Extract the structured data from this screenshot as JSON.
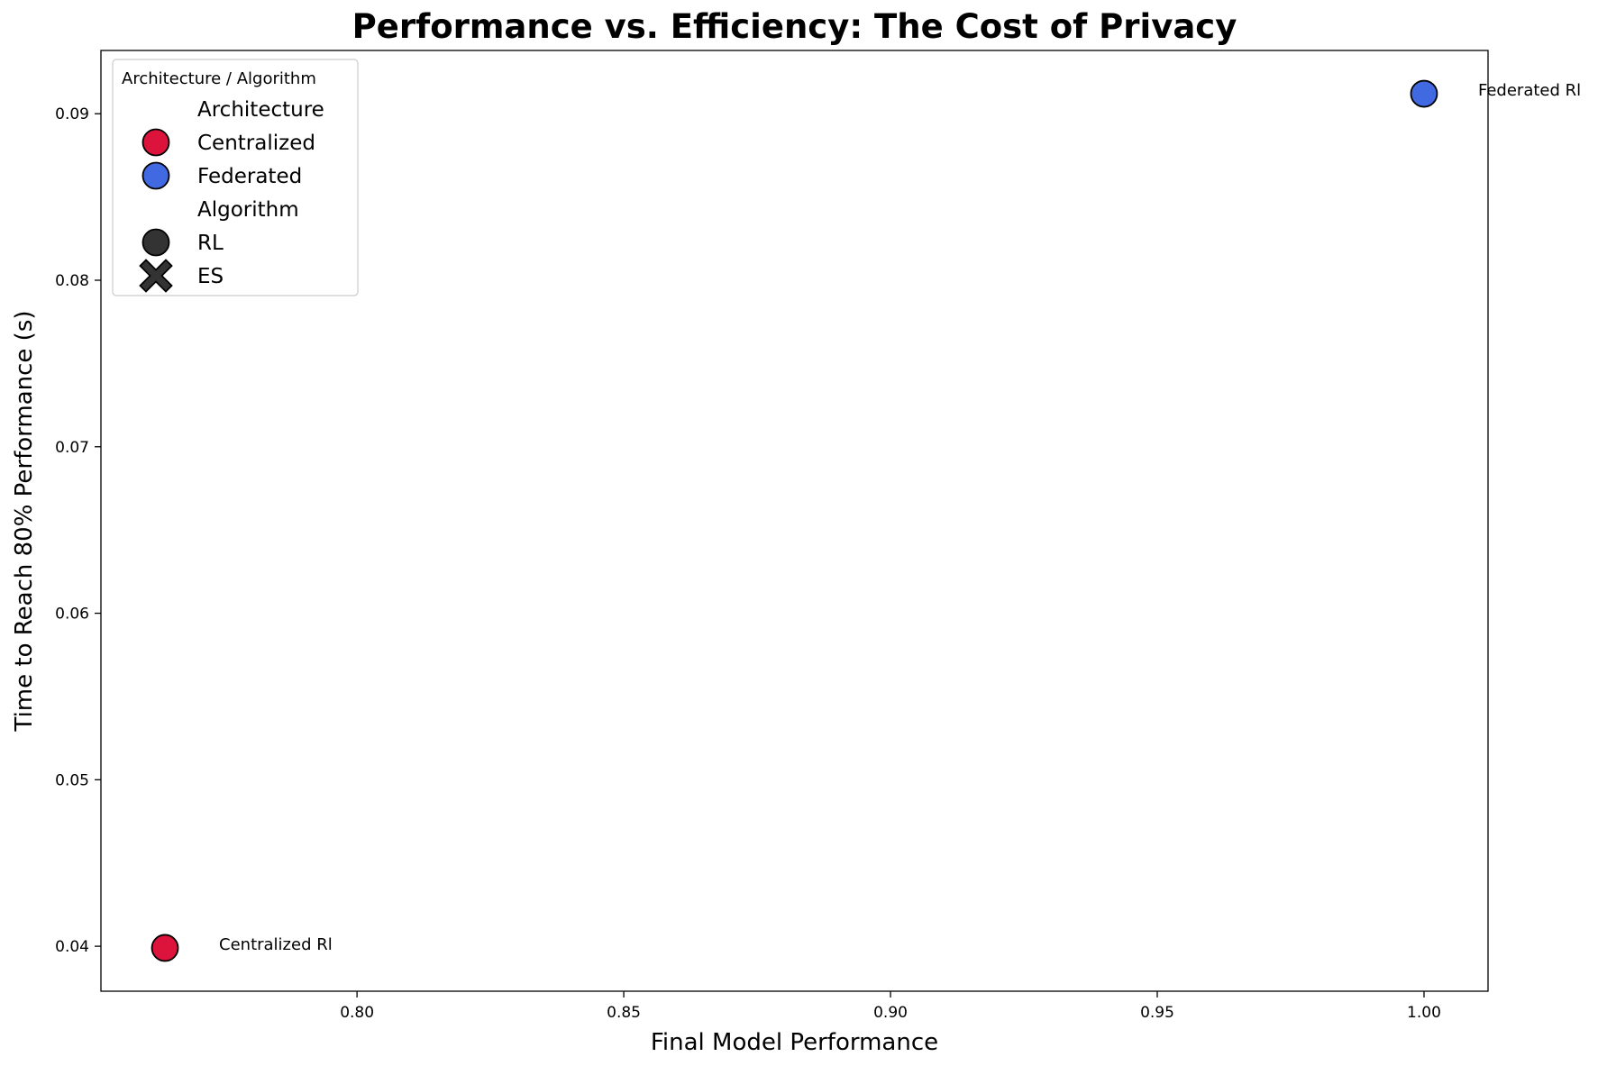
{
  "chart_data": {
    "type": "scatter",
    "title": "Performance vs. Efficiency: The Cost of Privacy",
    "xlabel": "Final Model Performance",
    "ylabel": "Time to Reach 80% Performance (s)",
    "xlim": [
      0.752,
      1.012
    ],
    "ylim": [
      0.0373,
      0.0938
    ],
    "xticks": [
      0.8,
      0.85,
      0.9,
      0.95,
      1.0
    ],
    "xtick_labels": [
      "0.80",
      "0.85",
      "0.90",
      "0.95",
      "1.00"
    ],
    "yticks": [
      0.04,
      0.05,
      0.06,
      0.07,
      0.08,
      0.09
    ],
    "ytick_labels": [
      "0.04",
      "0.05",
      "0.06",
      "0.07",
      "0.08",
      "0.09"
    ],
    "grid": false,
    "legend_placement": "upper-left",
    "legend": {
      "title": "Architecture / Algorithm",
      "entries": [
        {
          "label": "Architecture",
          "kind": "header"
        },
        {
          "label": "Centralized",
          "kind": "circle",
          "color": "#dc143c"
        },
        {
          "label": "Federated",
          "kind": "circle",
          "color": "#4169e1"
        },
        {
          "label": "Algorithm",
          "kind": "header"
        },
        {
          "label": "RL",
          "kind": "circle",
          "color": "#333333"
        },
        {
          "label": "ES",
          "kind": "x",
          "color": "#333333"
        }
      ]
    },
    "points": [
      {
        "x": 0.764,
        "y": 0.0399,
        "architecture": "Centralized",
        "algorithm": "RL",
        "color": "#dc143c",
        "marker": "circle",
        "label": "Centralized Rl"
      },
      {
        "x": 1.0,
        "y": 0.0912,
        "architecture": "Federated",
        "algorithm": "RL",
        "color": "#4169e1",
        "marker": "circle",
        "label": "Federated Rl"
      }
    ]
  }
}
